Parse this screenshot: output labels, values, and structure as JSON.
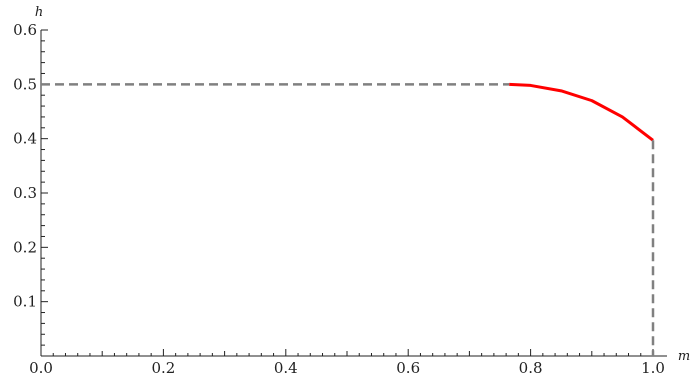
{
  "chart_data": {
    "type": "line",
    "xlabel": "m",
    "ylabel": "h",
    "xlim": [
      0.0,
      1.0
    ],
    "ylim": [
      0.0,
      0.6
    ],
    "xticks": [
      "0.0",
      "0.2",
      "0.4",
      "0.6",
      "0.8",
      "1.0"
    ],
    "yticks": [
      "0.1",
      "0.2",
      "0.3",
      "0.4",
      "0.5",
      "0.6"
    ],
    "grid": false,
    "series": [
      {
        "style": "solid",
        "color": "#ff0000",
        "x": [
          0.765,
          0.8,
          0.85,
          0.9,
          0.95,
          1.0
        ],
        "y": [
          0.5,
          0.498,
          0.488,
          0.47,
          0.44,
          0.397
        ]
      },
      {
        "style": "dashed",
        "color": "#808080",
        "x": [
          0.0,
          0.765
        ],
        "y": [
          0.5,
          0.5
        ]
      },
      {
        "style": "dashed",
        "color": "#808080",
        "x": [
          1.0,
          1.0
        ],
        "y": [
          0.397,
          0.0
        ]
      }
    ]
  }
}
